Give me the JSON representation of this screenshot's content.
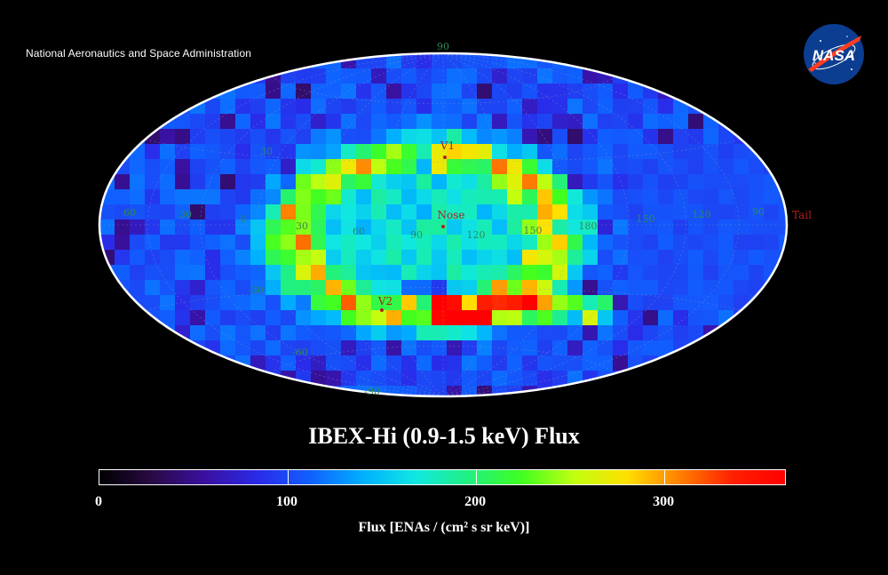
{
  "agency_name": "National Aeronautics and Space Administration",
  "logo_text": "NASA",
  "title": "IBEX-Hi (0.9-1.5 keV) Flux",
  "colors": {
    "background": "#000000",
    "grid_label": "#2e8a55",
    "marker": "#b0201c",
    "outline": "#ffffff"
  },
  "map": {
    "projection": "Aitoff-Hammer all-sky (ecliptic)",
    "markers": [
      {
        "label": "V1"
      },
      {
        "label": "Nose"
      },
      {
        "label": "V2"
      },
      {
        "label": "Tail"
      }
    ],
    "latitude_labels": [
      "90",
      "30",
      "-30",
      "-60",
      "-90"
    ],
    "longitude_labels": [
      "60",
      "30",
      "0",
      "30",
      "60",
      "90",
      "120",
      "150",
      "180",
      "150",
      "120",
      "90"
    ]
  },
  "colorbar": {
    "min": 0,
    "max": 365,
    "tick_labels": [
      "0",
      "100",
      "200",
      "300"
    ],
    "tick_values": [
      0,
      100,
      200,
      300
    ],
    "title": "Flux [ENAs /  (cm² s sr keV)]",
    "colormap": [
      "#000000",
      "#2a0a45",
      "#3a10a0",
      "#2a2ae8",
      "#1060ff",
      "#00b0ff",
      "#10e8e0",
      "#20f080",
      "#40ff20",
      "#c0ff10",
      "#ffe000",
      "#ff8000",
      "#ff2000",
      "#ff0000"
    ]
  },
  "chart_data": {
    "type": "heatmap",
    "title": "IBEX-Hi (0.9-1.5 keV) Flux",
    "colorbar_label": "Flux [ENAs /  (cm² s sr keV)]",
    "value_range": [
      0,
      365
    ],
    "annotations": [
      "V1",
      "Nose",
      "V2",
      "Tail"
    ],
    "description_values": {
      "background_level": 80,
      "ribbon_peak": 340
    }
  }
}
